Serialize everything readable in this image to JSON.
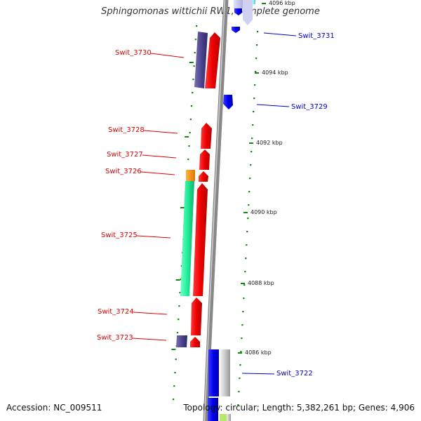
{
  "title": "Sphingomonas wittichii RW1, complete genome",
  "accession_label": "Accession: NC_009511",
  "topology_label": "Topology: circular; Length: 5,382,261 bp; Genes: 4,906",
  "colors": {
    "forward_gene": "#ee0000",
    "reverse_gene": "#0000ee",
    "forward_label": "#dd0000",
    "reverse_label": "#0000cc",
    "backbone": "#888888",
    "tick": "#118811"
  },
  "kbp_ticks": [
    "4096 kbp",
    "4094 kbp",
    "4092 kbp",
    "4090 kbp",
    "4088 kbp",
    "4086 kbp"
  ],
  "gene_labels": {
    "forward": [
      "Swit_3730",
      "Swit_3728",
      "Swit_3727",
      "Swit_3726",
      "Swit_3725",
      "Swit_3724",
      "Swit_3723"
    ],
    "reverse": [
      "Swit_3731",
      "Swit_3729",
      "Swit_3722"
    ]
  }
}
